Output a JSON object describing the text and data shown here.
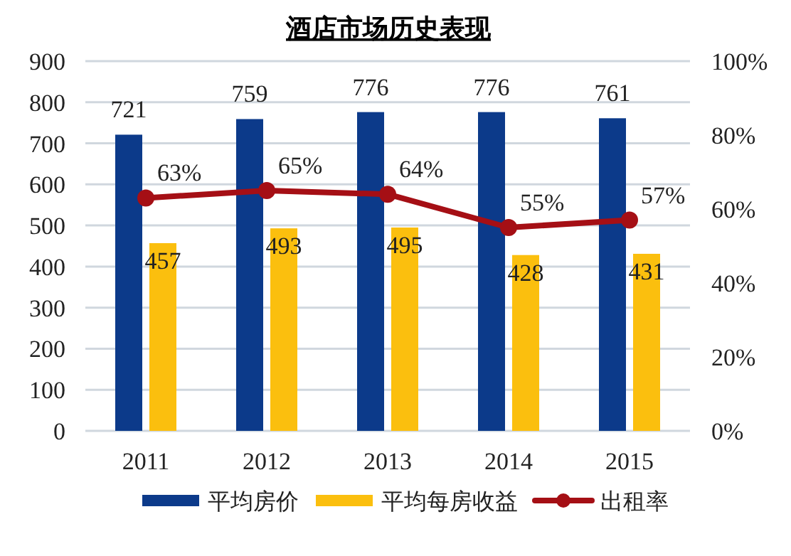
{
  "chart_data": {
    "type": "bar",
    "title": "酒店市场历史表现",
    "categories": [
      "2011",
      "2012",
      "2013",
      "2014",
      "2015"
    ],
    "series": [
      {
        "name": "平均房价",
        "color": "#0c3a8a",
        "values": [
          721,
          759,
          776,
          776,
          761
        ]
      },
      {
        "name": "平均每房收益",
        "color": "#fbbf0e",
        "values": [
          457,
          493,
          495,
          428,
          431
        ]
      },
      {
        "name": "出租率",
        "type": "line",
        "axis": "y2",
        "color": "#a50f15",
        "marker": "circle",
        "values": [
          63,
          65,
          64,
          55,
          57
        ],
        "value_labels": [
          "63%",
          "65%",
          "64%",
          "55%",
          "57%"
        ]
      }
    ],
    "data_labels": true,
    "ylim": [
      0,
      900
    ],
    "yticks": [
      0,
      100,
      200,
      300,
      400,
      500,
      600,
      700,
      800,
      900
    ],
    "y2lim": [
      0,
      100
    ],
    "y2ticks": [
      {
        "value": 0,
        "label": "0%"
      },
      {
        "value": 20,
        "label": "20%"
      },
      {
        "value": 40,
        "label": "40%"
      },
      {
        "value": 60,
        "label": "60%"
      },
      {
        "value": 80,
        "label": "80%"
      },
      {
        "value": 100,
        "label": "100%"
      }
    ],
    "grid": "y",
    "legend": "bottom"
  }
}
